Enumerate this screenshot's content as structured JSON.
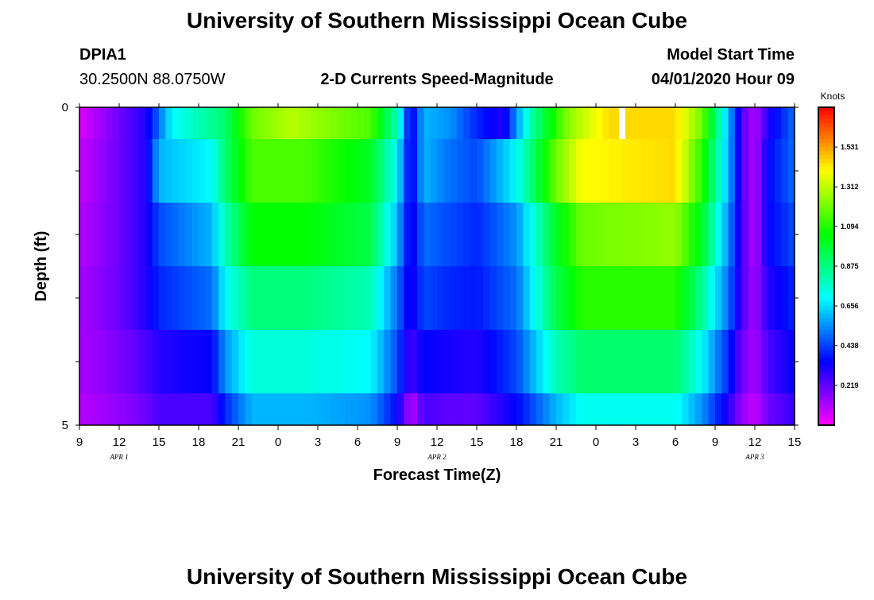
{
  "header": {
    "title": "University of Southern Mississippi Ocean Cube",
    "station": "DPIA1",
    "location": "30.2500N 88.0750W",
    "subtitle": "2-D Currents Speed-Magnitude",
    "model_start_label": "Model Start Time",
    "model_start_value": "04/01/2020 Hour 09"
  },
  "footer": {
    "title": "University of Southern Mississippi Ocean Cube"
  },
  "chart_data": {
    "type": "heatmap",
    "title": "2-D Currents Speed-Magnitude",
    "xlabel": "Forecast Time(Z)",
    "ylabel": "Depth (ft)",
    "y_range": [
      0,
      5
    ],
    "y_tick_labels": [
      "0",
      "5"
    ],
    "x_tick_labels": [
      "9",
      "12",
      "15",
      "18",
      "21",
      "0",
      "3",
      "6",
      "9",
      "12",
      "15",
      "18",
      "21",
      "0",
      "3",
      "6",
      "9",
      "12",
      "15"
    ],
    "date_labels": [
      "APR 1",
      "APR 2",
      "APR 3"
    ],
    "x_hours_offset_range": [
      0,
      54
    ],
    "colorbar": {
      "unit": "Knots",
      "ticks": [
        "1.531",
        "1.312",
        "1.094",
        "0.875",
        "0.656",
        "0.438",
        "0.219"
      ],
      "range": [
        0,
        1.75
      ]
    },
    "grid": false,
    "missing_data_color": "#ffffff",
    "depth_layers": [
      {
        "depth_range": [
          0,
          0.5
        ],
        "keyframes": [
          [
            0,
            0.05
          ],
          [
            3,
            0.2
          ],
          [
            5,
            0.3
          ],
          [
            7,
            0.7
          ],
          [
            11,
            0.9
          ],
          [
            13,
            1.2
          ],
          [
            16,
            1.3
          ],
          [
            22,
            1.15
          ],
          [
            24,
            0.8
          ],
          [
            25,
            0.3
          ],
          [
            26,
            0.6
          ],
          [
            28,
            0.55
          ],
          [
            30,
            0.4
          ],
          [
            32,
            0.3
          ],
          [
            34,
            0.8
          ],
          [
            37,
            1.25
          ],
          [
            40,
            1.45
          ],
          [
            45,
            1.45
          ],
          [
            47,
            1.2
          ],
          [
            49,
            0.6
          ],
          [
            50,
            0.25
          ],
          [
            51,
            0.1
          ],
          [
            52,
            0.3
          ],
          [
            54,
            0.5
          ]
        ]
      },
      {
        "depth_range": [
          0.5,
          1.5
        ],
        "keyframes": [
          [
            0,
            0.08
          ],
          [
            3,
            0.2
          ],
          [
            5,
            0.3
          ],
          [
            6,
            0.6
          ],
          [
            10,
            0.7
          ],
          [
            11,
            0.9
          ],
          [
            13,
            1.15
          ],
          [
            17,
            1.15
          ],
          [
            22,
            1.0
          ],
          [
            24,
            0.7
          ],
          [
            25,
            0.3
          ],
          [
            26,
            0.6
          ],
          [
            28,
            0.5
          ],
          [
            30,
            0.45
          ],
          [
            33,
            0.7
          ],
          [
            36,
            1.2
          ],
          [
            38,
            1.4
          ],
          [
            45,
            1.45
          ],
          [
            47,
            1.1
          ],
          [
            49,
            0.6
          ],
          [
            50,
            0.25
          ],
          [
            51,
            0.1
          ],
          [
            52,
            0.35
          ],
          [
            54,
            0.5
          ]
        ]
      },
      {
        "depth_range": [
          1.5,
          2.5
        ],
        "keyframes": [
          [
            0,
            0.1
          ],
          [
            3,
            0.2
          ],
          [
            5,
            0.3
          ],
          [
            6,
            0.45
          ],
          [
            10,
            0.6
          ],
          [
            11,
            0.8
          ],
          [
            13,
            1.05
          ],
          [
            17,
            1.05
          ],
          [
            22,
            0.95
          ],
          [
            24,
            0.6
          ],
          [
            25,
            0.3
          ],
          [
            26,
            0.5
          ],
          [
            28,
            0.45
          ],
          [
            30,
            0.4
          ],
          [
            33,
            0.55
          ],
          [
            36,
            1.0
          ],
          [
            38,
            1.2
          ],
          [
            45,
            1.25
          ],
          [
            47,
            1.0
          ],
          [
            49,
            0.55
          ],
          [
            50,
            0.25
          ],
          [
            51,
            0.1
          ],
          [
            52,
            0.35
          ],
          [
            54,
            0.45
          ]
        ]
      },
      {
        "depth_range": [
          2.5,
          3.5
        ],
        "keyframes": [
          [
            0,
            0.12
          ],
          [
            3,
            0.2
          ],
          [
            5,
            0.3
          ],
          [
            6,
            0.4
          ],
          [
            10,
            0.5
          ],
          [
            11,
            0.7
          ],
          [
            13,
            0.88
          ],
          [
            17,
            0.88
          ],
          [
            22,
            0.8
          ],
          [
            24,
            0.5
          ],
          [
            25,
            0.3
          ],
          [
            26,
            0.45
          ],
          [
            28,
            0.4
          ],
          [
            30,
            0.38
          ],
          [
            33,
            0.5
          ],
          [
            36,
            0.95
          ],
          [
            38,
            1.1
          ],
          [
            45,
            1.1
          ],
          [
            47,
            0.85
          ],
          [
            49,
            0.5
          ],
          [
            50,
            0.25
          ],
          [
            51,
            0.12
          ],
          [
            52,
            0.3
          ],
          [
            54,
            0.4
          ]
        ]
      },
      {
        "depth_range": [
          3.5,
          4.5
        ],
        "keyframes": [
          [
            0,
            0.12
          ],
          [
            3,
            0.18
          ],
          [
            5,
            0.25
          ],
          [
            6,
            0.3
          ],
          [
            10,
            0.35
          ],
          [
            11,
            0.55
          ],
          [
            13,
            0.75
          ],
          [
            17,
            0.75
          ],
          [
            22,
            0.7
          ],
          [
            24,
            0.45
          ],
          [
            25,
            0.25
          ],
          [
            26,
            0.35
          ],
          [
            28,
            0.32
          ],
          [
            30,
            0.3
          ],
          [
            33,
            0.45
          ],
          [
            36,
            0.8
          ],
          [
            38,
            0.9
          ],
          [
            45,
            0.9
          ],
          [
            47,
            0.7
          ],
          [
            49,
            0.4
          ],
          [
            50,
            0.2
          ],
          [
            51,
            0.12
          ],
          [
            52,
            0.25
          ],
          [
            54,
            0.35
          ]
        ]
      },
      {
        "depth_range": [
          4.5,
          5.0
        ],
        "keyframes": [
          [
            0,
            0.1
          ],
          [
            3,
            0.15
          ],
          [
            5,
            0.2
          ],
          [
            6,
            0.25
          ],
          [
            10,
            0.25
          ],
          [
            11,
            0.4
          ],
          [
            13,
            0.6
          ],
          [
            17,
            0.6
          ],
          [
            22,
            0.55
          ],
          [
            24,
            0.35
          ],
          [
            25,
            0.1
          ],
          [
            26,
            0.25
          ],
          [
            28,
            0.22
          ],
          [
            30,
            0.22
          ],
          [
            33,
            0.35
          ],
          [
            36,
            0.6
          ],
          [
            38,
            0.72
          ],
          [
            45,
            0.72
          ],
          [
            47,
            0.55
          ],
          [
            49,
            0.3
          ],
          [
            50,
            0.15
          ],
          [
            51,
            0.08
          ],
          [
            52,
            0.2
          ],
          [
            54,
            0.28
          ]
        ]
      }
    ]
  }
}
